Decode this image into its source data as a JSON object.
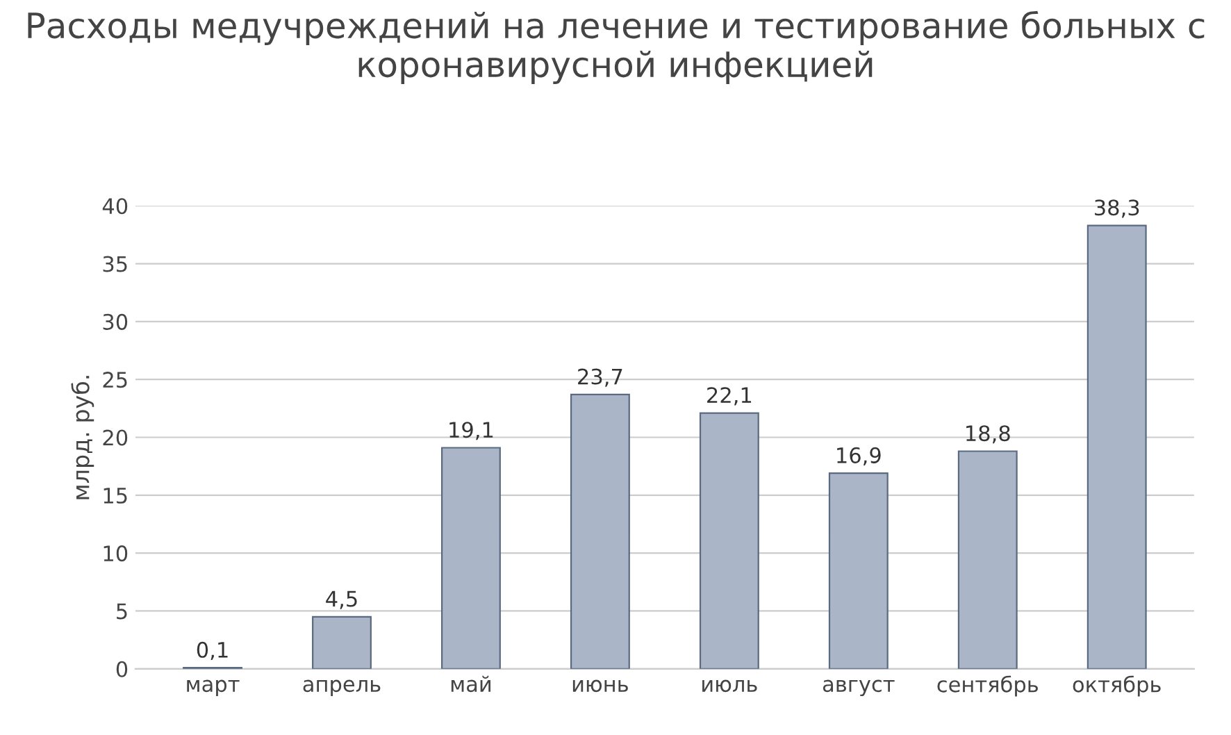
{
  "chart_data": {
    "type": "bar",
    "title": "Расходы медучреждений на лечение и тестирование больных с коронавирусной инфекцией",
    "ylabel": "млрд. руб.",
    "categories": [
      "март",
      "апрель",
      "май",
      "июнь",
      "июль",
      "август",
      "сентябрь",
      "октябрь"
    ],
    "values": [
      0.1,
      4.5,
      19.1,
      23.7,
      22.1,
      16.9,
      18.8,
      38.3
    ],
    "value_labels": [
      "0,1",
      "4,5",
      "19,1",
      "23,7",
      "22,1",
      "16,9",
      "18,8",
      "38,3"
    ],
    "color": "#aab6c8",
    "ylim": [
      0,
      40
    ],
    "yticks": [
      0,
      5,
      10,
      15,
      20,
      25,
      30,
      35,
      40
    ],
    "grid": "y",
    "legend": false
  }
}
